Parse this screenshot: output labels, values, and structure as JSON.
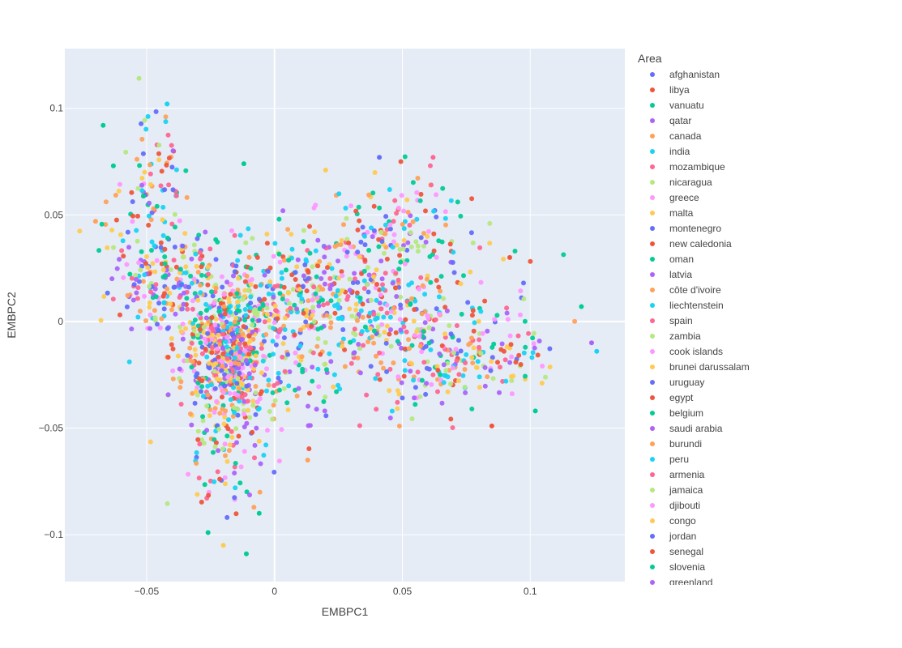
{
  "chart_data": {
    "type": "scatter",
    "xlabel": "EMBPC1",
    "ylabel": "EMBPC2",
    "xlim": [
      -0.082,
      0.137
    ],
    "ylim": [
      -0.122,
      0.128
    ],
    "x_ticks": [
      -0.05,
      0,
      0.05,
      0.1
    ],
    "x_tick_labels": [
      "−0.05",
      "0",
      "0.05",
      "0.1"
    ],
    "y_ticks": [
      -0.1,
      -0.05,
      0,
      0.05,
      0.1
    ],
    "y_tick_labels": [
      "−0.1",
      "−0.05",
      "0",
      "0.05",
      "0.1"
    ],
    "grid": true,
    "legend": {
      "title": "Area",
      "placement": "right",
      "entries": [
        {
          "name": "afghanistan",
          "color": "#636efa"
        },
        {
          "name": "libya",
          "color": "#EF553B"
        },
        {
          "name": "vanuatu",
          "color": "#00cc96"
        },
        {
          "name": "qatar",
          "color": "#ab63fa"
        },
        {
          "name": "canada",
          "color": "#FFA15A"
        },
        {
          "name": "india",
          "color": "#19d3f3"
        },
        {
          "name": "mozambique",
          "color": "#FF6692"
        },
        {
          "name": "nicaragua",
          "color": "#B6E880"
        },
        {
          "name": "greece",
          "color": "#FF97FF"
        },
        {
          "name": "malta",
          "color": "#FECB52"
        },
        {
          "name": "montenegro",
          "color": "#636efa"
        },
        {
          "name": "new caledonia",
          "color": "#EF553B"
        },
        {
          "name": "oman",
          "color": "#00cc96"
        },
        {
          "name": "latvia",
          "color": "#ab63fa"
        },
        {
          "name": "côte d'ivoire",
          "color": "#FFA15A"
        },
        {
          "name": "liechtenstein",
          "color": "#19d3f3"
        },
        {
          "name": "spain",
          "color": "#FF6692"
        },
        {
          "name": "zambia",
          "color": "#B6E880"
        },
        {
          "name": "cook islands",
          "color": "#FF97FF"
        },
        {
          "name": "brunei darussalam",
          "color": "#FECB52"
        },
        {
          "name": "uruguay",
          "color": "#636efa"
        },
        {
          "name": "egypt",
          "color": "#EF553B"
        },
        {
          "name": "belgium",
          "color": "#00cc96"
        },
        {
          "name": "saudi arabia",
          "color": "#ab63fa"
        },
        {
          "name": "burundi",
          "color": "#FFA15A"
        },
        {
          "name": "peru",
          "color": "#19d3f3"
        },
        {
          "name": "armenia",
          "color": "#FF6692"
        },
        {
          "name": "jamaica",
          "color": "#B6E880"
        },
        {
          "name": "djibouti",
          "color": "#FF97FF"
        },
        {
          "name": "congo",
          "color": "#FECB52"
        },
        {
          "name": "jordan",
          "color": "#636efa"
        },
        {
          "name": "senegal",
          "color": "#EF553B"
        },
        {
          "name": "slovenia",
          "color": "#00cc96"
        },
        {
          "name": "greenland",
          "color": "#ab63fa"
        }
      ]
    },
    "colors": [
      "#636efa",
      "#EF553B",
      "#00cc96",
      "#ab63fa",
      "#FFA15A",
      "#19d3f3",
      "#FF6692",
      "#B6E880",
      "#FF97FF",
      "#FECB52"
    ],
    "clusters": [
      {
        "cx": -0.018,
        "cy": -0.015,
        "sx": 0.009,
        "sy": 0.018,
        "n": 720
      },
      {
        "cx": -0.044,
        "cy": 0.022,
        "sx": 0.011,
        "sy": 0.014,
        "n": 220
      },
      {
        "cx": -0.047,
        "cy": 0.068,
        "sx": 0.007,
        "sy": 0.013,
        "n": 70
      },
      {
        "cx": 0.038,
        "cy": 0.012,
        "sx": 0.022,
        "sy": 0.018,
        "n": 380
      },
      {
        "cx": 0.062,
        "cy": -0.016,
        "sx": 0.017,
        "sy": 0.012,
        "n": 200
      },
      {
        "cx": 0.05,
        "cy": 0.045,
        "sx": 0.012,
        "sy": 0.012,
        "n": 100
      },
      {
        "cx": -0.02,
        "cy": -0.072,
        "sx": 0.008,
        "sy": 0.012,
        "n": 55
      },
      {
        "cx": 0.005,
        "cy": 0.012,
        "sx": 0.012,
        "sy": 0.014,
        "n": 160
      },
      {
        "cx": 0.092,
        "cy": -0.014,
        "sx": 0.008,
        "sy": 0.01,
        "n": 45
      },
      {
        "cx": 0.012,
        "cy": -0.035,
        "sx": 0.01,
        "sy": 0.012,
        "n": 50
      }
    ],
    "outliers": [
      {
        "x": -0.053,
        "y": 0.114,
        "series": "zambia"
      },
      {
        "x": -0.042,
        "y": 0.102,
        "series": "india"
      },
      {
        "x": -0.067,
        "y": 0.092,
        "series": "vanuatu"
      },
      {
        "x": 0.12,
        "y": 0.007,
        "series": "oman"
      },
      {
        "x": 0.124,
        "y": -0.01,
        "series": "qatar"
      },
      {
        "x": 0.126,
        "y": -0.014,
        "series": "liechtenstein"
      },
      {
        "x": 0.102,
        "y": -0.042,
        "series": "belgium"
      },
      {
        "x": -0.011,
        "y": -0.109,
        "series": "slovenia"
      },
      {
        "x": -0.02,
        "y": -0.105,
        "series": "congo"
      },
      {
        "x": -0.026,
        "y": -0.099,
        "series": "oman"
      },
      {
        "x": -0.006,
        "y": -0.09,
        "series": "vanuatu"
      },
      {
        "x": 0.041,
        "y": 0.077,
        "series": "afghanistan"
      },
      {
        "x": 0.062,
        "y": 0.077,
        "series": "mozambique"
      },
      {
        "x": 0.02,
        "y": 0.071,
        "series": "malta"
      },
      {
        "x": 0.085,
        "y": -0.049,
        "series": "libya"
      },
      {
        "x": 0.092,
        "y": 0.03,
        "series": "egypt"
      },
      {
        "x": -0.07,
        "y": 0.047,
        "series": "canada"
      },
      {
        "x": -0.063,
        "y": 0.073,
        "series": "slovenia"
      },
      {
        "x": -0.012,
        "y": 0.074,
        "series": "belgium"
      },
      {
        "x": 0.013,
        "y": -0.065,
        "series": "canada"
      }
    ]
  }
}
